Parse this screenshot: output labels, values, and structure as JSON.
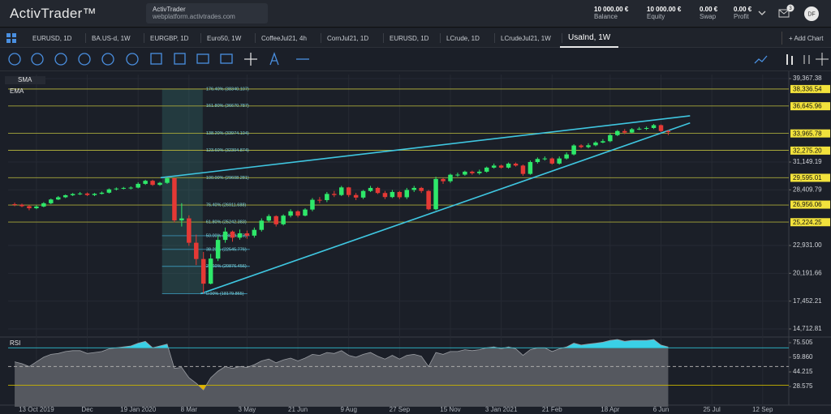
{
  "header": {
    "logo": "ActivTrader™",
    "account": {
      "name": "ActivTrader",
      "url": "webplatform.activtrades.com"
    },
    "stats": [
      {
        "value": "10 000.00 €",
        "label": "Balance"
      },
      {
        "value": "10 000.00 €",
        "label": "Equity"
      },
      {
        "value": "0.00 €",
        "label": "Swap"
      },
      {
        "value": "0.00 €",
        "label": "Profit"
      }
    ],
    "notifications": 3,
    "avatar": "DF"
  },
  "tabs": [
    "EURUSD, 1D",
    "BA.US-d, 1W",
    "EURGBP, 1D",
    "Euro50, 1W",
    "CoffeeJul21, 4h",
    "CornJul21, 1D",
    "EURUSD, 1D",
    "LCrude, 1D",
    "LCrudeJul21, 1W",
    "UsaInd, 1W"
  ],
  "active_tab": 9,
  "add_chart": "+ Add Chart",
  "chart_data": {
    "type": "candlestick",
    "indicators": [
      "SMA",
      "EMA"
    ],
    "up_color": "#2ee86a",
    "down_color": "#e53935",
    "grid": true,
    "candles": {
      "open": [
        27000,
        26950,
        26800,
        26600,
        26770,
        27090,
        27460,
        27680,
        27880,
        28000,
        28050,
        27900,
        28020,
        28130,
        28460,
        28540,
        28600,
        28630,
        29000,
        29300,
        28900,
        29100,
        29550,
        25400,
        25600,
        23200,
        21600,
        19170,
        21640,
        23480,
        24300,
        23700,
        24130,
        23900,
        24470,
        25380,
        25820,
        25020,
        25870,
        26300,
        25870,
        26470,
        27430,
        27400,
        28010,
        27900,
        28650,
        27900,
        27650,
        28300,
        28600,
        28100,
        27700,
        28200,
        27680,
        28400,
        28600,
        28300,
        26500,
        29480,
        29260,
        29900,
        29910,
        30200,
        30050,
        30200,
        30600,
        30800,
        30600,
        30990,
        30800,
        29980,
        31150,
        31450,
        31500,
        31000,
        31500,
        31900,
        32780,
        32620,
        32800,
        33070,
        33200,
        33800,
        34200,
        34050,
        34380,
        34430,
        34500,
        34780,
        34200
      ],
      "high": [
        27150,
        27050,
        26900,
        26900,
        27200,
        27550,
        27800,
        27950,
        28100,
        28200,
        28150,
        28100,
        28250,
        28550,
        28650,
        28700,
        28750,
        29150,
        29400,
        29400,
        29200,
        29600,
        29570,
        27100,
        25900,
        24000,
        22300,
        22100,
        23900,
        24700,
        24400,
        24500,
        24400,
        24700,
        25600,
        26000,
        25900,
        26000,
        26500,
        26400,
        26600,
        27600,
        27700,
        28200,
        28300,
        28800,
        28700,
        28100,
        28400,
        28800,
        28700,
        28300,
        28400,
        28300,
        28600,
        28800,
        28700,
        28400,
        29700,
        29600,
        30000,
        30100,
        30300,
        30300,
        30400,
        30700,
        31000,
        30900,
        31100,
        31100,
        30900,
        31300,
        31600,
        31700,
        31600,
        31700,
        32100,
        32900,
        32900,
        33000,
        33200,
        33400,
        33950,
        34300,
        34400,
        34500,
        34600,
        34650,
        34900,
        34850,
        34300
      ],
      "low": [
        26800,
        26700,
        26400,
        26500,
        26700,
        27000,
        27400,
        27600,
        27800,
        27900,
        27800,
        27800,
        27950,
        28050,
        28350,
        28450,
        28450,
        28550,
        28900,
        28800,
        28800,
        29000,
        25200,
        24800,
        22900,
        21000,
        18213,
        19100,
        21400,
        23200,
        23300,
        23500,
        23600,
        23700,
        24300,
        25200,
        24800,
        24900,
        25700,
        25700,
        25800,
        26300,
        27100,
        27200,
        27700,
        27800,
        27700,
        27400,
        27500,
        28200,
        28000,
        27500,
        27600,
        27500,
        27500,
        28200,
        28100,
        26400,
        26400,
        29000,
        29100,
        29700,
        29800,
        29900,
        29900,
        30100,
        30500,
        30500,
        30500,
        30700,
        29800,
        29900,
        31000,
        31300,
        30900,
        30900,
        31400,
        31800,
        32500,
        32500,
        32700,
        33000,
        33100,
        33700,
        33900,
        34000,
        34300,
        34300,
        34400,
        34100,
        33800
      ],
      "close": [
        26950,
        26800,
        26600,
        26770,
        27090,
        27460,
        27680,
        27880,
        28000,
        28050,
        27900,
        28020,
        28130,
        28460,
        28540,
        28600,
        28630,
        29000,
        29300,
        28900,
        29100,
        29550,
        25400,
        25600,
        23200,
        21600,
        19170,
        21640,
        23480,
        24300,
        23700,
        24130,
        23900,
        24470,
        25380,
        25820,
        25020,
        25870,
        26300,
        25870,
        26470,
        27430,
        27400,
        28010,
        27900,
        28650,
        27900,
        27650,
        28300,
        28600,
        28100,
        27700,
        28200,
        27680,
        28400,
        28600,
        28300,
        26500,
        29480,
        29260,
        29900,
        29910,
        30200,
        30050,
        30200,
        30600,
        30800,
        30600,
        30990,
        30800,
        29980,
        31150,
        31450,
        31500,
        31000,
        31500,
        31900,
        32780,
        32620,
        32800,
        33070,
        33200,
        33800,
        34200,
        34050,
        34380,
        34430,
        34500,
        34780,
        34200,
        34100
      ]
    },
    "xlim": [
      -0.9,
      106.6
    ],
    "xticks": [
      {
        "value": 3,
        "label": "13 Oct 2019"
      },
      {
        "value": 10,
        "label": "Dec"
      },
      {
        "value": 17,
        "label": "19 Jan 2020"
      },
      {
        "value": 24,
        "label": "8 Mar"
      },
      {
        "value": 32,
        "label": "3 May"
      },
      {
        "value": 39,
        "label": "21 Jun"
      },
      {
        "value": 46,
        "label": "9 Aug"
      },
      {
        "value": 53,
        "label": "27 Sep"
      },
      {
        "value": 60,
        "label": "15 Nov"
      },
      {
        "value": 67,
        "label": "3 Jan 2021"
      },
      {
        "value": 74,
        "label": "21 Feb"
      },
      {
        "value": 82,
        "label": "18 Apr"
      },
      {
        "value": 89,
        "label": "6 Jun"
      },
      {
        "value": 96,
        "label": "25 Jul"
      },
      {
        "value": 103,
        "label": "12 Sep"
      }
    ],
    "ylim": [
      14074,
      39766
    ],
    "yticks": [
      {
        "value": 39367.38,
        "label": "39,367.38"
      },
      {
        "value": 31149.19,
        "label": "31,149.19"
      },
      {
        "value": 28409.79,
        "label": "28,409.79"
      },
      {
        "value": 22931,
        "label": "22,931.00"
      },
      {
        "value": 20191.66,
        "label": "20,191.66"
      },
      {
        "value": 17452.21,
        "label": "17,452.21"
      },
      {
        "value": 14712.81,
        "label": "14,712.81"
      }
    ],
    "price_tags": [
      {
        "value": 38336.54,
        "label": "38,336.54"
      },
      {
        "value": 36645.96,
        "label": "36,645.96"
      },
      {
        "value": 33965.78,
        "label": "33,965.78"
      },
      {
        "value": 32275.2,
        "label": "32,275.20"
      },
      {
        "value": 29595.01,
        "label": "29,595.01"
      },
      {
        "value": 26956.06,
        "label": "26,956.06"
      },
      {
        "value": 25224.25,
        "label": "25,224.25"
      }
    ],
    "fib_range": [
      20.3,
      25.9
    ],
    "fib_levels": [
      {
        "label": "176.40% (38340.107)",
        "value": 38340.107,
        "extended": true
      },
      {
        "label": "161.80% (36670.787)",
        "value": 36670.787,
        "extended": true
      },
      {
        "label": "138.20% (33974.104)",
        "value": 33974.104,
        "extended": true
      },
      {
        "label": "123.60% (32304.874)",
        "value": 32304.874,
        "extended": true
      },
      {
        "label": "100.00% (29608.281)",
        "value": 29608.281,
        "extended": true
      },
      {
        "label": "76.40% (26911.688)",
        "value": 26911.688,
        "extended": true
      },
      {
        "label": "61.80% (25242.383)",
        "value": 25242.383,
        "extended": true
      },
      {
        "label": "50.00% (23894.073)",
        "value": 23894.073,
        "extended": false
      },
      {
        "label": "38.20% (22545.776)",
        "value": 22545.776,
        "extended": false
      },
      {
        "label": "23.60% (20876.456)",
        "value": 20876.456,
        "extended": false
      },
      {
        "label": "0.00% (18179.865)",
        "value": 18179.865,
        "extended": false
      }
    ],
    "trend_color": "#3fc6e0",
    "trendlines": [
      {
        "x": [
          20.1,
          93
        ],
        "y": [
          29608,
          35700
        ]
      },
      {
        "x": [
          25.6,
          93
        ],
        "y": [
          18180,
          35000
        ]
      }
    ],
    "rsi": {
      "name": "RSI",
      "ylim": [
        6.9,
        79.85
      ],
      "yticks": [
        75.505,
        {
          "value": 59.86,
          "label": "59.860"
        },
        44.215,
        28.575
      ],
      "levels": [
        70,
        50,
        30
      ],
      "values": [
        55,
        53,
        50,
        55,
        60,
        63,
        64,
        66,
        67,
        67,
        64,
        65,
        66,
        69,
        70,
        71,
        72,
        75,
        77,
        70,
        72,
        74,
        48,
        49,
        38,
        32,
        25,
        38,
        45,
        50,
        48,
        50,
        49,
        52,
        56,
        58,
        54,
        57,
        59,
        56,
        59,
        63,
        62,
        65,
        64,
        67,
        62,
        60,
        63,
        65,
        61,
        58,
        62,
        58,
        62,
        63,
        61,
        50,
        65,
        63,
        66,
        66,
        68,
        67,
        68,
        70,
        71,
        69,
        71,
        69,
        62,
        68,
        70,
        70,
        66,
        69,
        71,
        75,
        73,
        74,
        75,
        76,
        78,
        79,
        77,
        78,
        78,
        78,
        79,
        73,
        71
      ]
    }
  }
}
